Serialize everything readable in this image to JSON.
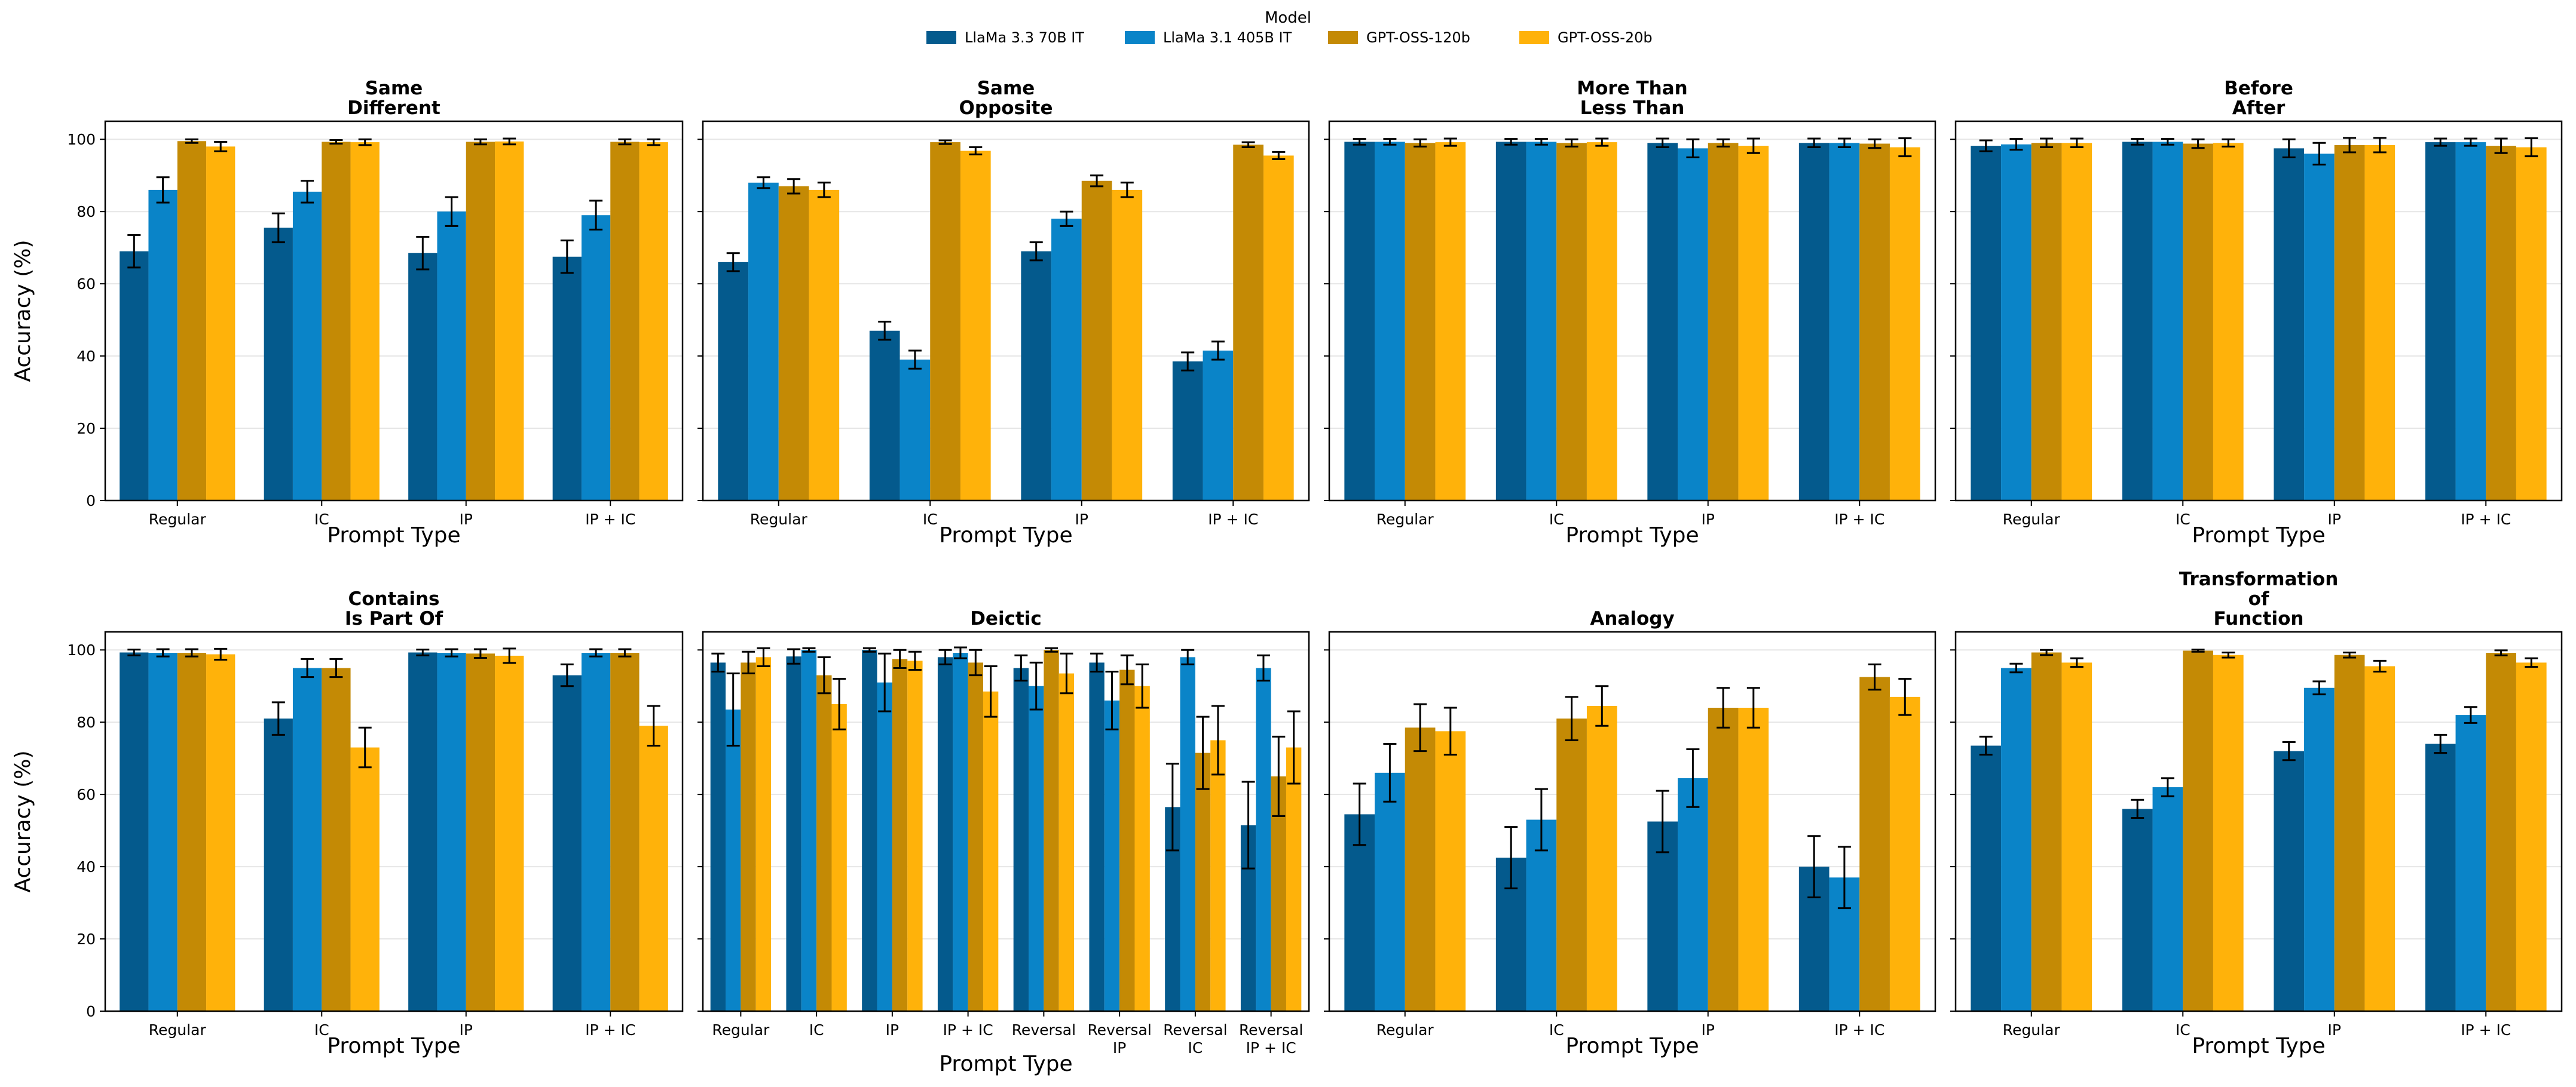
{
  "legend": {
    "title": "Model",
    "items": [
      {
        "name": "LlaMa 3.3 70B IT",
        "color": "#045a8d"
      },
      {
        "name": "LlaMa 3.1 405B IT",
        "color": "#0a84c8"
      },
      {
        "name": "GPT-OSS-120b",
        "color": "#c48a05"
      },
      {
        "name": "GPT-OSS-20b",
        "color": "#ffb20a"
      }
    ]
  },
  "chart_data": [
    {
      "type": "bar",
      "title": "Same\nDifferent",
      "xlabel": "Prompt Type",
      "ylabel": "Accuracy (%)",
      "ylim": [
        0,
        105
      ],
      "yticks": [
        0,
        20,
        40,
        60,
        80,
        100
      ],
      "categories": [
        "Regular",
        "IC",
        "IP",
        "IP + IC"
      ],
      "series": [
        {
          "name": "LlaMa 3.3 70B IT",
          "values": [
            69,
            75.5,
            68.5,
            67.5
          ],
          "errors": [
            4.5,
            4,
            4.5,
            4.5
          ]
        },
        {
          "name": "LlaMa 3.1 405B IT",
          "values": [
            86,
            85.5,
            80,
            79
          ],
          "errors": [
            3.5,
            3,
            4,
            4
          ]
        },
        {
          "name": "GPT-OSS-120b",
          "values": [
            99.5,
            99.3,
            99.3,
            99.3
          ],
          "errors": [
            0.5,
            0.5,
            0.7,
            0.7
          ]
        },
        {
          "name": "GPT-OSS-20b",
          "values": [
            98,
            99.2,
            99.4,
            99.2
          ],
          "errors": [
            1.3,
            0.8,
            0.8,
            0.8
          ]
        }
      ]
    },
    {
      "type": "bar",
      "title": "Same\nOpposite",
      "xlabel": "Prompt Type",
      "ylabel": "",
      "ylim": [
        0,
        105
      ],
      "yticks": [
        0,
        20,
        40,
        60,
        80,
        100
      ],
      "categories": [
        "Regular",
        "IC",
        "IP",
        "IP + IC"
      ],
      "series": [
        {
          "name": "LlaMa 3.3 70B IT",
          "values": [
            66,
            47,
            69,
            38.5
          ],
          "errors": [
            2.5,
            2.5,
            2.5,
            2.5
          ]
        },
        {
          "name": "LlaMa 3.1 405B IT",
          "values": [
            88,
            39,
            78,
            41.5
          ],
          "errors": [
            1.5,
            2.5,
            2,
            2.5
          ]
        },
        {
          "name": "GPT-OSS-120b",
          "values": [
            87,
            99.2,
            88.5,
            98.5
          ],
          "errors": [
            2,
            0.5,
            1.5,
            0.7
          ]
        },
        {
          "name": "GPT-OSS-20b",
          "values": [
            86,
            96.8,
            86,
            95.5
          ],
          "errors": [
            2,
            1,
            2,
            1
          ]
        }
      ]
    },
    {
      "type": "bar",
      "title": "More Than\nLess Than",
      "xlabel": "Prompt Type",
      "ylabel": "",
      "ylim": [
        0,
        105
      ],
      "yticks": [
        0,
        20,
        40,
        60,
        80,
        100
      ],
      "categories": [
        "Regular",
        "IC",
        "IP",
        "IP + IC"
      ],
      "series": [
        {
          "name": "LlaMa 3.3 70B IT",
          "values": [
            99.3,
            99.3,
            99,
            99
          ],
          "errors": [
            0.8,
            0.8,
            1.2,
            1.2
          ]
        },
        {
          "name": "LlaMa 3.1 405B IT",
          "values": [
            99.3,
            99.3,
            97.5,
            99
          ],
          "errors": [
            0.8,
            0.8,
            2.5,
            1.2
          ]
        },
        {
          "name": "GPT-OSS-120b",
          "values": [
            99,
            99,
            99,
            98.8
          ],
          "errors": [
            1,
            1,
            1,
            1.2
          ]
        },
        {
          "name": "GPT-OSS-20b",
          "values": [
            99.2,
            99.2,
            98.2,
            97.8
          ],
          "errors": [
            1,
            1,
            2,
            2.5
          ]
        }
      ]
    },
    {
      "type": "bar",
      "title": "Before\nAfter",
      "xlabel": "Prompt Type",
      "ylabel": "",
      "ylim": [
        0,
        105
      ],
      "yticks": [
        0,
        20,
        40,
        60,
        80,
        100
      ],
      "categories": [
        "Regular",
        "IC",
        "IP",
        "IP + IC"
      ],
      "series": [
        {
          "name": "LlaMa 3.3 70B IT",
          "values": [
            98.2,
            99.3,
            97.5,
            99.2
          ],
          "errors": [
            1.5,
            0.8,
            2.5,
            1
          ]
        },
        {
          "name": "LlaMa 3.1 405B IT",
          "values": [
            98.6,
            99.3,
            96,
            99.2
          ],
          "errors": [
            1.5,
            0.8,
            3,
            1
          ]
        },
        {
          "name": "GPT-OSS-120b",
          "values": [
            99,
            98.8,
            98.4,
            98.2
          ],
          "errors": [
            1.2,
            1.2,
            2,
            2
          ]
        },
        {
          "name": "GPT-OSS-20b",
          "values": [
            99,
            99,
            98.4,
            97.8
          ],
          "errors": [
            1.2,
            1,
            2,
            2.5
          ]
        }
      ]
    },
    {
      "type": "bar",
      "title": "Contains\nIs Part Of",
      "xlabel": "Prompt Type",
      "ylabel": "Accuracy (%)",
      "ylim": [
        0,
        105
      ],
      "yticks": [
        0,
        20,
        40,
        60,
        80,
        100
      ],
      "categories": [
        "Regular",
        "IC",
        "IP",
        "IP + IC"
      ],
      "series": [
        {
          "name": "LlaMa 3.3 70B IT",
          "values": [
            99.3,
            81,
            99.3,
            93
          ],
          "errors": [
            0.8,
            4.5,
            0.8,
            3
          ]
        },
        {
          "name": "LlaMa 3.1 405B IT",
          "values": [
            99.2,
            95,
            99.2,
            99.2
          ],
          "errors": [
            1,
            2.5,
            1,
            1
          ]
        },
        {
          "name": "GPT-OSS-120b",
          "values": [
            99.2,
            95,
            99,
            99.2
          ],
          "errors": [
            1,
            2.5,
            1.2,
            1
          ]
        },
        {
          "name": "GPT-OSS-20b",
          "values": [
            98.8,
            73,
            98.4,
            79
          ],
          "errors": [
            1.5,
            5.5,
            2,
            5.5
          ]
        }
      ]
    },
    {
      "type": "bar",
      "title": "Deictic",
      "xlabel": "Prompt Type",
      "ylabel": "",
      "ylim": [
        0,
        105
      ],
      "yticks": [
        0,
        20,
        40,
        60,
        80,
        100
      ],
      "categories": [
        "Regular",
        "IC",
        "IP",
        "IP + IC",
        "Reversal",
        "Reversal\nIP",
        "Reversal\nIC",
        "Reversal\nIP + IC"
      ],
      "series": [
        {
          "name": "LlaMa 3.3 70B IT",
          "values": [
            96.5,
            98.2,
            100,
            98,
            95,
            96.5,
            56.5,
            51.5
          ],
          "errors": [
            2.5,
            2,
            0.5,
            2,
            3.5,
            2.5,
            12,
            12
          ]
        },
        {
          "name": "LlaMa 3.1 405B IT",
          "values": [
            83.5,
            100,
            91,
            99.2,
            90,
            86,
            98,
            95
          ],
          "errors": [
            10,
            0.5,
            8,
            1.5,
            6.5,
            8,
            2,
            3.5
          ]
        },
        {
          "name": "GPT-OSS-120b",
          "values": [
            96.5,
            93,
            97.5,
            96.5,
            100,
            94.5,
            71.5,
            65
          ],
          "errors": [
            3,
            5,
            2.5,
            3.5,
            0.5,
            4,
            10,
            11
          ]
        },
        {
          "name": "GPT-OSS-20b",
          "values": [
            98,
            85,
            97,
            88.5,
            93.5,
            90,
            75,
            73
          ],
          "errors": [
            2.5,
            7,
            2.5,
            7,
            5.5,
            6,
            9.5,
            10
          ]
        }
      ]
    },
    {
      "type": "bar",
      "title": "Analogy",
      "xlabel": "Prompt Type",
      "ylabel": "",
      "ylim": [
        0,
        105
      ],
      "yticks": [
        0,
        20,
        40,
        60,
        80,
        100
      ],
      "categories": [
        "Regular",
        "IC",
        "IP",
        "IP + IC"
      ],
      "series": [
        {
          "name": "LlaMa 3.3 70B IT",
          "values": [
            54.5,
            42.5,
            52.5,
            40
          ],
          "errors": [
            8.5,
            8.5,
            8.5,
            8.5
          ]
        },
        {
          "name": "LlaMa 3.1 405B IT",
          "values": [
            66,
            53,
            64.5,
            37
          ],
          "errors": [
            8,
            8.5,
            8,
            8.5
          ]
        },
        {
          "name": "GPT-OSS-120b",
          "values": [
            78.5,
            81,
            84,
            92.5
          ],
          "errors": [
            6.5,
            6,
            5.5,
            3.5
          ]
        },
        {
          "name": "GPT-OSS-20b",
          "values": [
            77.5,
            84.5,
            84,
            87
          ],
          "errors": [
            6.5,
            5.5,
            5.5,
            5
          ]
        }
      ]
    },
    {
      "type": "bar",
      "title": "Transformation\nof\nFunction",
      "xlabel": "Prompt Type",
      "ylabel": "",
      "ylim": [
        0,
        105
      ],
      "yticks": [
        0,
        20,
        40,
        60,
        80,
        100
      ],
      "categories": [
        "Regular",
        "IC",
        "IP",
        "IP + IC"
      ],
      "series": [
        {
          "name": "LlaMa 3.3 70B IT",
          "values": [
            73.5,
            56,
            72,
            74
          ],
          "errors": [
            2.5,
            2.5,
            2.5,
            2.5
          ]
        },
        {
          "name": "LlaMa 3.1 405B IT",
          "values": [
            95,
            62,
            89.5,
            82
          ],
          "errors": [
            1.2,
            2.5,
            1.8,
            2.2
          ]
        },
        {
          "name": "GPT-OSS-120b",
          "values": [
            99.3,
            99.8,
            98.6,
            99.2
          ],
          "errors": [
            0.7,
            0.3,
            0.7,
            0.7
          ]
        },
        {
          "name": "GPT-OSS-20b",
          "values": [
            96.5,
            98.6,
            95.5,
            96.5
          ],
          "errors": [
            1.2,
            0.7,
            1.5,
            1.2
          ]
        }
      ]
    }
  ]
}
